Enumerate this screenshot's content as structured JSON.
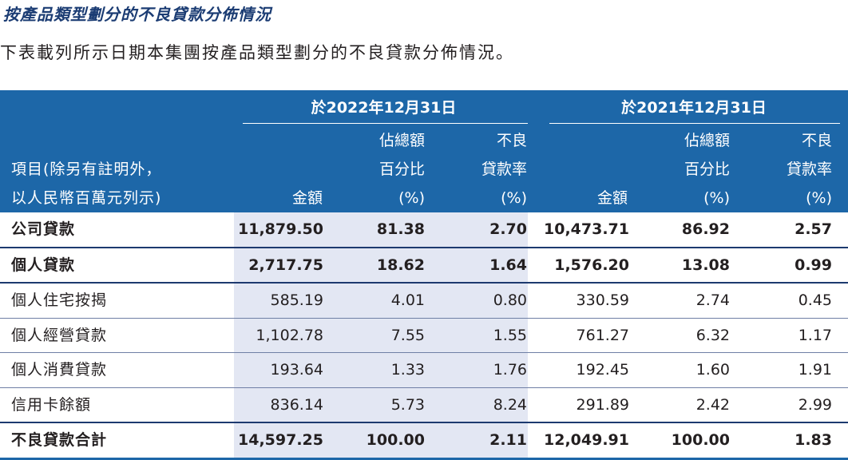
{
  "title": "按產品類型劃分的不良貸款分佈情況",
  "description": "下表載列所示日期本集團按產品類型劃分的不良貸款分佈情況。",
  "header": {
    "item_lines": [
      "項目(除另有註明外，",
      "以人民幣百萬元列示)"
    ],
    "period_2022": "於2022年12月31日",
    "period_2021": "於2021年12月31日",
    "amount": "金額",
    "share_lines": [
      "佔總額",
      "百分比",
      "(%)"
    ],
    "npl_rate_lines": [
      "不良",
      "貸款率",
      "(%)"
    ]
  },
  "rows": [
    {
      "label": "公司貸款",
      "a2022": "11,879.50",
      "s2022": "81.38",
      "r2022": "2.70",
      "a2021": "10,473.71",
      "s2021": "86.92",
      "r2021": "2.57"
    },
    {
      "label": "個人貸款",
      "a2022": "2,717.75",
      "s2022": "18.62",
      "r2022": "1.64",
      "a2021": "1,576.20",
      "s2021": "13.08",
      "r2021": "0.99"
    },
    {
      "label": "個人住宅按揭",
      "a2022": "585.19",
      "s2022": "4.01",
      "r2022": "0.80",
      "a2021": "330.59",
      "s2021": "2.74",
      "r2021": "0.45"
    },
    {
      "label": "個人經營貸款",
      "a2022": "1,102.78",
      "s2022": "7.55",
      "r2022": "1.55",
      "a2021": "761.27",
      "s2021": "6.32",
      "r2021": "1.17"
    },
    {
      "label": "個人消費貸款",
      "a2022": "193.64",
      "s2022": "1.33",
      "r2022": "1.76",
      "a2021": "192.45",
      "s2021": "1.60",
      "r2021": "1.91"
    },
    {
      "label": "信用卡餘額",
      "a2022": "836.14",
      "s2022": "5.73",
      "r2022": "8.24",
      "a2021": "291.89",
      "s2021": "2.42",
      "r2021": "2.99"
    },
    {
      "label": "不良貸款合計",
      "a2022": "14,597.25",
      "s2022": "100.00",
      "r2022": "2.11",
      "a2021": "12,049.91",
      "s2021": "100.00",
      "r2021": "1.83"
    }
  ]
}
